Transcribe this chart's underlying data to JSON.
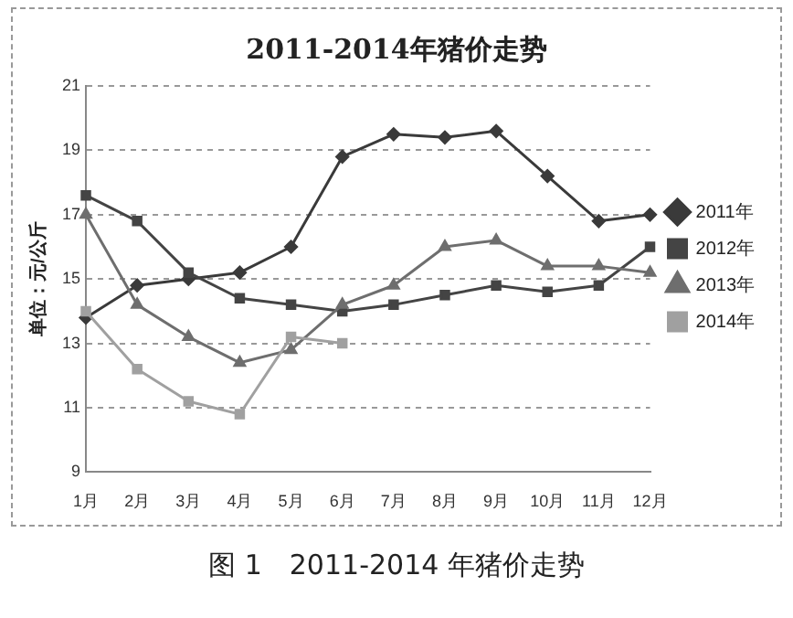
{
  "chart_data": {
    "type": "line",
    "title": "2011-2014年猪价走势",
    "ylabel": "单位：元/公斤",
    "categories": [
      "1月",
      "2月",
      "3月",
      "4月",
      "5月",
      "6月",
      "7月",
      "8月",
      "9月",
      "10月",
      "11月",
      "12月"
    ],
    "series": [
      {
        "name": "2011年",
        "color": "#3a3a3a",
        "marker": "diamond",
        "values": [
          13.8,
          14.8,
          15.0,
          15.2,
          16.0,
          18.8,
          19.5,
          19.4,
          19.6,
          18.2,
          16.8,
          17.0
        ]
      },
      {
        "name": "2012年",
        "color": "#444444",
        "marker": "square",
        "values": [
          17.6,
          16.8,
          15.2,
          14.4,
          14.2,
          14.0,
          14.2,
          14.5,
          14.8,
          14.6,
          14.8,
          16.0
        ]
      },
      {
        "name": "2013年",
        "color": "#6e6e6e",
        "marker": "triangle",
        "values": [
          17.0,
          14.2,
          13.2,
          12.4,
          12.8,
          14.2,
          14.8,
          16.0,
          16.2,
          15.4,
          15.4,
          15.2
        ]
      },
      {
        "name": "2014年",
        "color": "#a0a0a0",
        "marker": "square",
        "values": [
          14.0,
          12.2,
          11.2,
          10.8,
          13.2,
          13.0,
          null,
          null,
          null,
          null,
          null,
          null
        ]
      }
    ],
    "ylim": [
      9,
      21
    ],
    "yticks": [
      9,
      11,
      13,
      15,
      17,
      19,
      21
    ],
    "grid": "y",
    "legend": "right",
    "annotations": [
      "图 1　2011-2014 年猪价走势"
    ]
  }
}
